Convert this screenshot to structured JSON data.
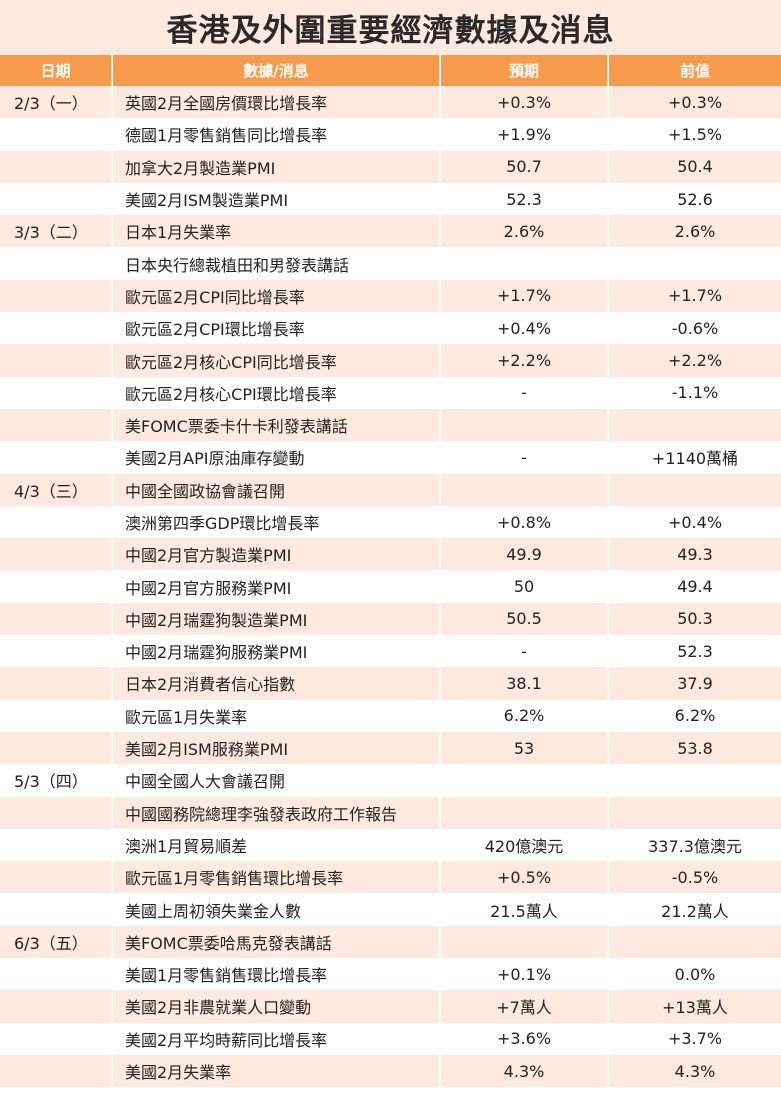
{
  "title": "香港及外圍重要經濟數據及消息",
  "colors": {
    "header_bg": "#f79a4c",
    "row_shade": "#fde9df",
    "title_bg": "#fde9df"
  },
  "columns": [
    "日期",
    "數據/消息",
    "預期",
    "前值"
  ],
  "rows": [
    {
      "date": "2/3（一）",
      "item": "英國2月全國房價環比增長率",
      "forecast": "+0.3%",
      "previous": "+0.3%"
    },
    {
      "date": "",
      "item": "德國1月零售銷售同比增長率",
      "forecast": "+1.9%",
      "previous": "+1.5%"
    },
    {
      "date": "",
      "item": "加拿大2月製造業PMI",
      "forecast": "50.7",
      "previous": "50.4"
    },
    {
      "date": "",
      "item": "美國2月ISM製造業PMI",
      "forecast": "52.3",
      "previous": "52.6"
    },
    {
      "date": "3/3（二）",
      "item": "日本1月失業率",
      "forecast": "2.6%",
      "previous": "2.6%"
    },
    {
      "date": "",
      "item": "日本央行總裁植田和男發表講話",
      "forecast": "",
      "previous": ""
    },
    {
      "date": "",
      "item": "歐元區2月CPI同比增長率",
      "forecast": "+1.7%",
      "previous": "+1.7%"
    },
    {
      "date": "",
      "item": "歐元區2月CPI環比增長率",
      "forecast": "+0.4%",
      "previous": "-0.6%"
    },
    {
      "date": "",
      "item": "歐元區2月核心CPI同比增長率",
      "forecast": "+2.2%",
      "previous": "+2.2%"
    },
    {
      "date": "",
      "item": "歐元區2月核心CPI環比增長率",
      "forecast": "-",
      "previous": "-1.1%"
    },
    {
      "date": "",
      "item": "美FOMC票委卡什卡利發表講話",
      "forecast": "",
      "previous": ""
    },
    {
      "date": "",
      "item": "美國2月API原油庫存變動",
      "forecast": "-",
      "previous": "+1140萬桶"
    },
    {
      "date": "4/3（三）",
      "item": "中國全國政協會議召開",
      "forecast": "",
      "previous": ""
    },
    {
      "date": "",
      "item": "澳洲第四季GDP環比增長率",
      "forecast": "+0.8%",
      "previous": "+0.4%"
    },
    {
      "date": "",
      "item": "中國2月官方製造業PMI",
      "forecast": "49.9",
      "previous": "49.3"
    },
    {
      "date": "",
      "item": "中國2月官方服務業PMI",
      "forecast": "50",
      "previous": "49.4"
    },
    {
      "date": "",
      "item": "中國2月瑞霆狗製造業PMI",
      "forecast": "50.5",
      "previous": "50.3"
    },
    {
      "date": "",
      "item": "中國2月瑞霆狗服務業PMI",
      "forecast": "-",
      "previous": "52.3"
    },
    {
      "date": "",
      "item": "日本2月消費者信心指數",
      "forecast": "38.1",
      "previous": "37.9"
    },
    {
      "date": "",
      "item": "歐元區1月失業率",
      "forecast": "6.2%",
      "previous": "6.2%"
    },
    {
      "date": "",
      "item": "美國2月ISM服務業PMI",
      "forecast": "53",
      "previous": "53.8"
    },
    {
      "date": "5/3（四）",
      "item": "中國全國人大會議召開",
      "forecast": "",
      "previous": ""
    },
    {
      "date": "",
      "item": "中國國務院總理李強發表政府工作報告",
      "forecast": "",
      "previous": ""
    },
    {
      "date": "",
      "item": "澳洲1月貿易順差",
      "forecast": "420億澳元",
      "previous": "337.3億澳元"
    },
    {
      "date": "",
      "item": "歐元區1月零售銷售環比增長率",
      "forecast": "+0.5%",
      "previous": "-0.5%"
    },
    {
      "date": "",
      "item": "美國上周初領失業金人數",
      "forecast": "21.5萬人",
      "previous": "21.2萬人"
    },
    {
      "date": "6/3（五）",
      "item": "美FOMC票委哈馬克發表講話",
      "forecast": "",
      "previous": ""
    },
    {
      "date": "",
      "item": "美國1月零售銷售環比增長率",
      "forecast": "+0.1%",
      "previous": "0.0%"
    },
    {
      "date": "",
      "item": "美國2月非農就業人口變動",
      "forecast": "+7萬人",
      "previous": "+13萬人"
    },
    {
      "date": "",
      "item": "美國2月平均時薪同比增長率",
      "forecast": "+3.6%",
      "previous": "+3.7%"
    },
    {
      "date": "",
      "item": "美國2月失業率",
      "forecast": "4.3%",
      "previous": "4.3%"
    }
  ]
}
